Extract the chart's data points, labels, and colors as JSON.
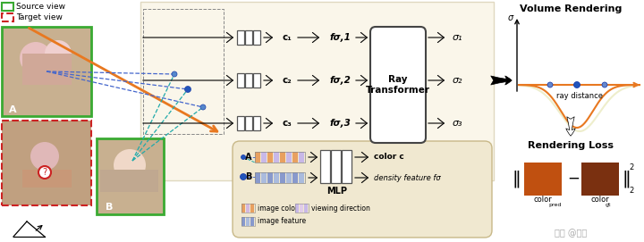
{
  "bg_color": "#ffffff",
  "main_panel_bg": "#faf6ea",
  "main_panel_ec": "#e0d8c0",
  "bottom_panel_bg": "#f0e8d0",
  "bottom_panel_ec": "#c8b888",
  "title_volume": "Volume Rendering",
  "title_loss": "Rendering Loss",
  "sigma_label": "σ",
  "ray_label": "ray distance",
  "source_view_label": "Source view",
  "target_view_label": "Target view",
  "legend_items": [
    {
      "label": "image color",
      "colors": [
        "#e8a060",
        "#d4b8e0",
        "#e8a060",
        "#d4b8e0"
      ],
      "hatch": true
    },
    {
      "label": "viewing direction",
      "colors": [
        "#c8b8e8",
        "#e0cce8",
        "#c8b8e8",
        "#e0cce8"
      ],
      "hatch": true
    },
    {
      "label": "image feature",
      "colors": [
        "#8899cc",
        "#aabbdd",
        "#8899cc",
        "#aabbdd"
      ],
      "hatch": true
    }
  ],
  "c_labels": [
    "c₁",
    "c₂",
    "c₃"
  ],
  "f_labels": [
    "fσ,1",
    "fσ,2",
    "fσ,3"
  ],
  "sigma_out": [
    "σ₁",
    "σ₂",
    "σ₃"
  ],
  "transformer_label": "Ray\nTransformer",
  "mlp_label": "MLP",
  "color_c_label": "color c",
  "density_label": "density feature fσ",
  "color_pred_hex": "#c05010",
  "color_gt_hex": "#7a3010",
  "orange_color": "#e87820",
  "green_color": "#3aaa32",
  "red_color": "#cc2222",
  "blue_dot_color": "#2255bb",
  "cyan_color": "#22aaaa",
  "watermark": "知乎 @黄治"
}
